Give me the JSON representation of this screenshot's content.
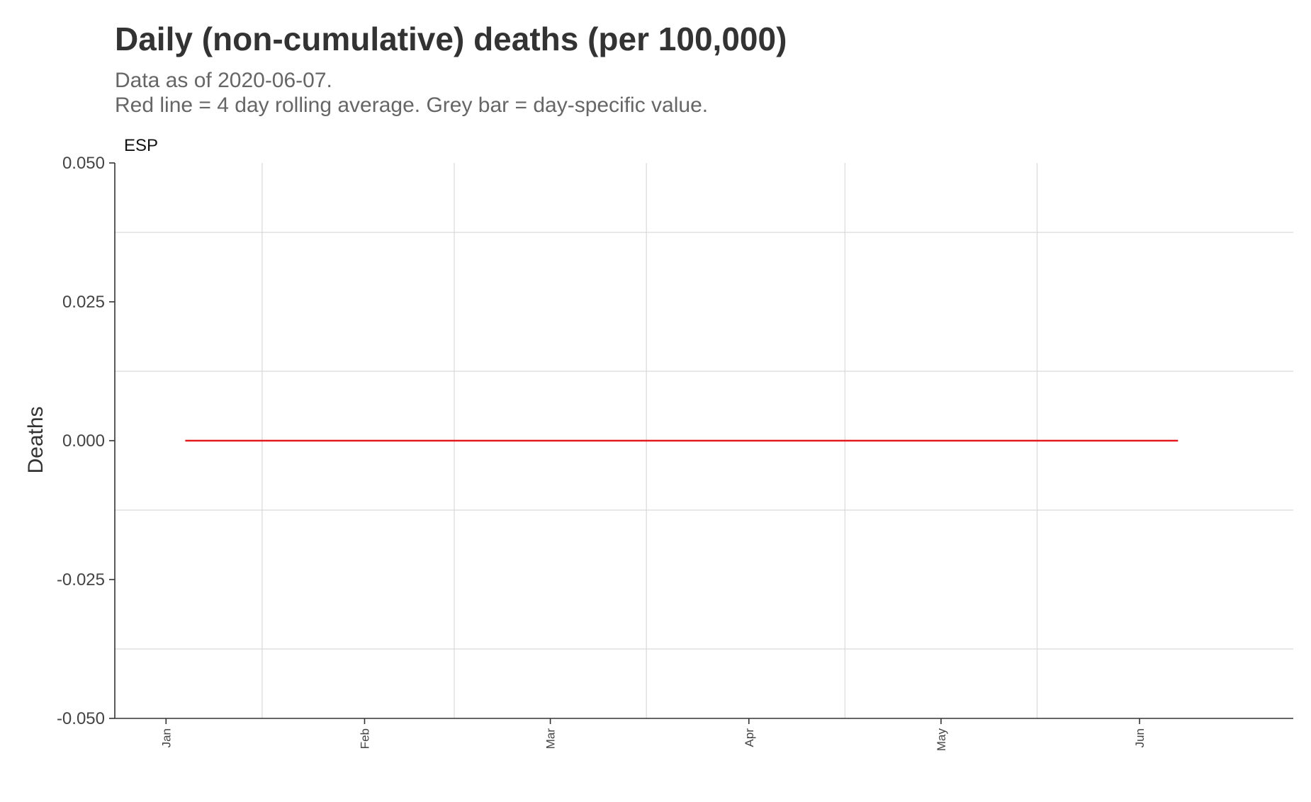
{
  "title": "Daily (non-cumulative) deaths (per 100,000)",
  "subtitle_lines": [
    "Data as of 2020-06-07.",
    "Red line = 4 day rolling average. Grey bar = day-specific value."
  ],
  "colors": {
    "line": "#e41a1c",
    "grid": "#d9d9d9",
    "axis": "#333333",
    "text": "#333333"
  },
  "chart_data": {
    "type": "line",
    "panel_label": "ESP",
    "ylabel": "Deaths",
    "xlabel": "",
    "ylim": [
      -0.05,
      0.05
    ],
    "yticks": [
      -0.05,
      -0.025,
      0,
      0.025,
      0.05
    ],
    "ytick_labels": [
      "-0.050",
      "-0.025",
      "0.000",
      "0.025",
      "0.050"
    ],
    "xlim": [
      "2019-12-24",
      "2020-06-25"
    ],
    "xticks": [
      "2020-01-01",
      "2020-02-01",
      "2020-03-01",
      "2020-04-01",
      "2020-05-01",
      "2020-06-01"
    ],
    "xtick_labels": [
      "Jan",
      "Feb",
      "Mar",
      "Apr",
      "May",
      "Jun"
    ],
    "x_minor_gridlines": [
      "2020-01-16",
      "2020-02-15",
      "2020-03-16",
      "2020-04-16",
      "2020-05-16"
    ],
    "grid": true,
    "series": [
      {
        "x": [
          "2020-01-04",
          "2020-06-07"
        ],
        "y": [
          0,
          0
        ]
      }
    ]
  }
}
